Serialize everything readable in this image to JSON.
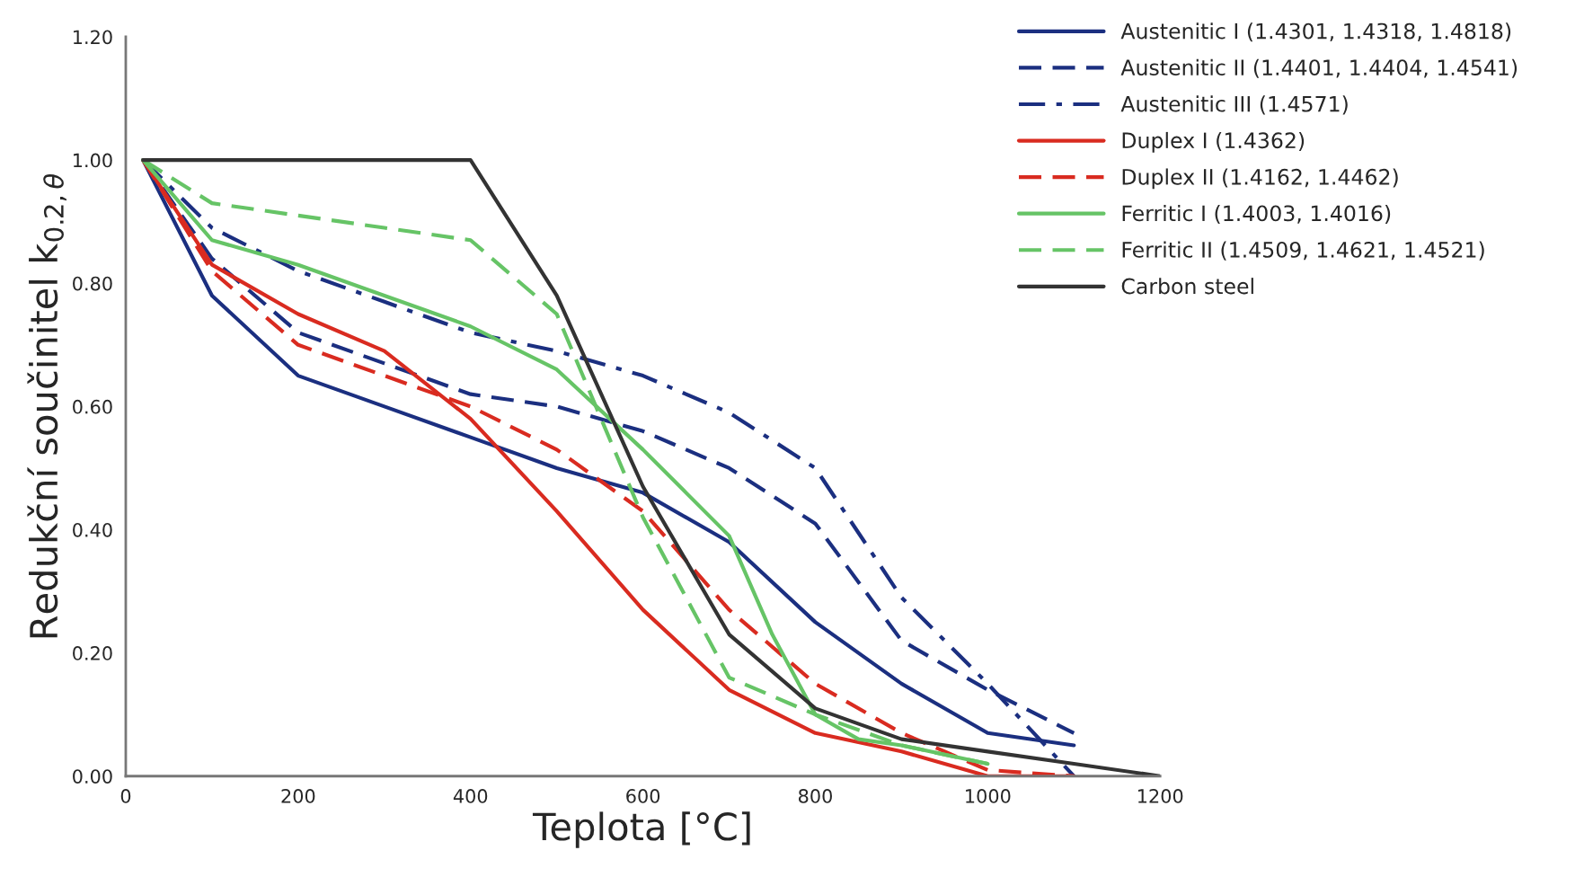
{
  "chart_data": {
    "type": "line",
    "xlabel": "Teplota [°C]",
    "ylabel": "Redukční součinitel k$_{0.2,θ}$",
    "xlim": [
      0,
      1200
    ],
    "xticks": [
      0,
      200,
      400,
      600,
      800,
      1000,
      1200
    ],
    "ylim": [
      0,
      1.2
    ],
    "yticks": [
      {
        "value": 0,
        "label": "0.00"
      },
      {
        "value": 0.2,
        "label": "0.20"
      },
      {
        "value": 0.4,
        "label": "0.40"
      },
      {
        "value": 0.6,
        "label": "0.60"
      },
      {
        "value": 0.8,
        "label": "0.80"
      },
      {
        "value": 1.0,
        "label": "1.00"
      },
      {
        "value": 1.2,
        "label": "1.20"
      }
    ],
    "grid": false,
    "legend": "top right",
    "marker": "none",
    "series": [
      {
        "name": "Austenitic I (1.4301, 1.4318, 1.4818)",
        "color": "#1b2f80",
        "line_style": "solid",
        "x": [
          20,
          100,
          200,
          300,
          400,
          500,
          600,
          700,
          800,
          900,
          1000,
          1100
        ],
        "values": [
          1.0,
          0.78,
          0.65,
          0.6,
          0.55,
          0.5,
          0.46,
          0.38,
          0.25,
          0.15,
          0.07,
          0.05
        ]
      },
      {
        "name": "Austenitic II (1.4401, 1.4404, 1.4541)",
        "color": "#1b2f80",
        "line_style": "dashed",
        "x": [
          20,
          100,
          200,
          300,
          400,
          500,
          600,
          700,
          800,
          900,
          1000,
          1100
        ],
        "values": [
          1.0,
          0.84,
          0.72,
          0.67,
          0.62,
          0.6,
          0.56,
          0.5,
          0.41,
          0.22,
          0.14,
          0.07
        ]
      },
      {
        "name": "Austenitic III (1.4571)",
        "color": "#1b2f80",
        "line_style": "dashdot",
        "x": [
          20,
          100,
          200,
          300,
          400,
          500,
          600,
          700,
          800,
          900,
          1000,
          1100
        ],
        "values": [
          1.0,
          0.89,
          0.82,
          0.77,
          0.72,
          0.69,
          0.65,
          0.59,
          0.5,
          0.29,
          0.15,
          0.0
        ]
      },
      {
        "name": "Duplex I (1.4362)",
        "color": "#d92b20",
        "line_style": "solid",
        "x": [
          20,
          100,
          200,
          300,
          400,
          500,
          600,
          700,
          800,
          900,
          1000,
          1100
        ],
        "values": [
          1.0,
          0.83,
          0.75,
          0.69,
          0.58,
          0.43,
          0.27,
          0.14,
          0.07,
          0.04,
          0.0,
          0.0
        ]
      },
      {
        "name": "Duplex II (1.4162, 1.4462)",
        "color": "#d92b20",
        "line_style": "dashed",
        "x": [
          20,
          100,
          200,
          300,
          400,
          500,
          600,
          700,
          800,
          900,
          1000,
          1100
        ],
        "values": [
          1.0,
          0.82,
          0.7,
          0.65,
          0.6,
          0.53,
          0.43,
          0.27,
          0.15,
          0.07,
          0.01,
          0.0
        ]
      },
      {
        "name": "Ferritic I (1.4003, 1.4016)",
        "color": "#66c466",
        "line_style": "solid",
        "x": [
          20,
          100,
          200,
          300,
          400,
          500,
          600,
          650,
          700,
          750,
          800,
          850,
          900,
          1000
        ],
        "values": [
          1.0,
          0.87,
          0.83,
          0.78,
          0.73,
          0.66,
          0.53,
          0.46,
          0.39,
          0.23,
          0.1,
          0.06,
          0.05,
          0.02
        ]
      },
      {
        "name": "Ferritic II (1.4509, 1.4621, 1.4521)",
        "color": "#66c466",
        "line_style": "dashed",
        "x": [
          20,
          100,
          200,
          300,
          400,
          500,
          600,
          700,
          800,
          900,
          1000
        ],
        "values": [
          1.0,
          0.93,
          0.91,
          0.89,
          0.87,
          0.75,
          0.42,
          0.16,
          0.1,
          0.05,
          0.02
        ]
      },
      {
        "name": "Carbon steel",
        "color": "#333333",
        "line_style": "solid",
        "x": [
          20,
          400,
          500,
          600,
          700,
          800,
          900,
          1000,
          1100,
          1200
        ],
        "values": [
          1.0,
          1.0,
          0.78,
          0.47,
          0.23,
          0.11,
          0.06,
          0.04,
          0.02,
          0.0
        ]
      }
    ]
  }
}
